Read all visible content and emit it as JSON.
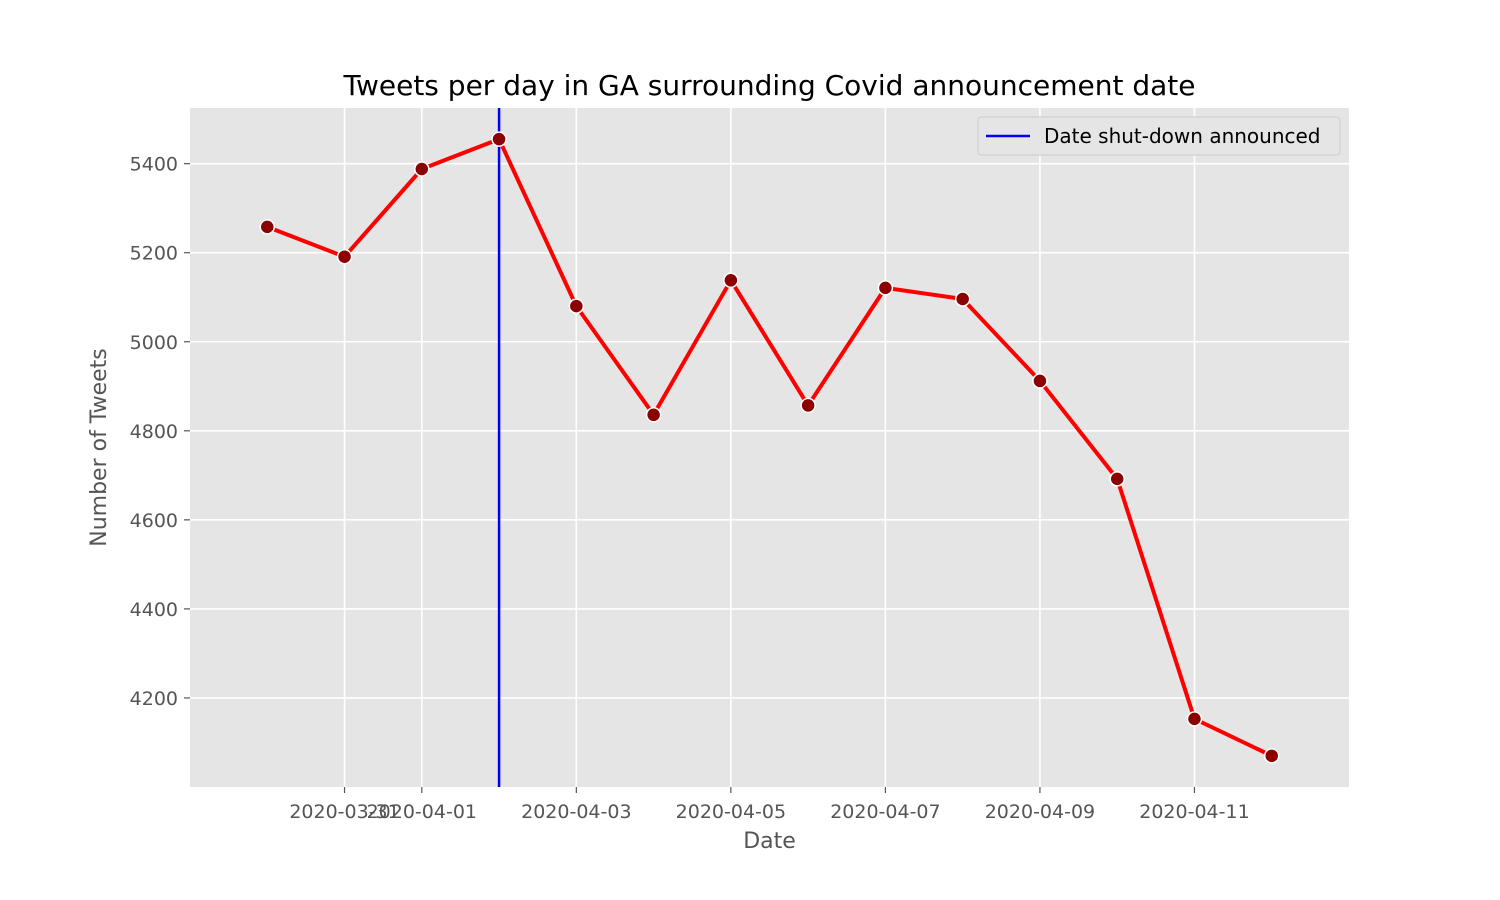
{
  "chart_data": {
    "type": "line",
    "title": "Tweets per day in GA surrounding Covid announcement date",
    "xlabel": "Date",
    "ylabel": "Number of Tweets",
    "x": [
      "2020-03-30",
      "2020-03-31",
      "2020-04-01",
      "2020-04-02",
      "2020-04-03",
      "2020-04-04",
      "2020-04-05",
      "2020-04-06",
      "2020-04-07",
      "2020-04-08",
      "2020-04-09",
      "2020-04-10",
      "2020-04-11",
      "2020-04-12"
    ],
    "series": [
      {
        "values": [
          5258,
          5191,
          5388,
          5455,
          5080,
          4836,
          5138,
          4857,
          5121,
          5096,
          4912,
          4692,
          4153,
          4070
        ],
        "color": "#ff0000",
        "marker_color": "#8b0000"
      }
    ],
    "vline": {
      "x": "2020-04-02",
      "label": "Date shut-down announced",
      "color": "#0000ff"
    },
    "xlim": [
      "2020-03-29",
      "2020-04-13"
    ],
    "ylim": [
      4000,
      5525
    ],
    "xticks": [
      "2020-03-31",
      "2020-04-01",
      "2020-04-03",
      "2020-04-05",
      "2020-04-07",
      "2020-04-09",
      "2020-04-11"
    ],
    "yticks": [
      4200,
      4400,
      4600,
      4800,
      5000,
      5200,
      5400
    ],
    "grid": true,
    "legend": "top-right",
    "background": "#e5e5e5"
  }
}
